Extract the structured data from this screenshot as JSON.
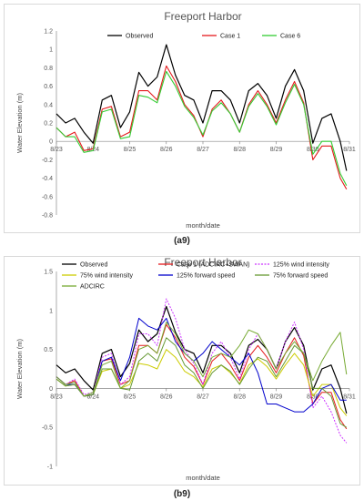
{
  "captions": [
    "(a9)",
    "(b9)"
  ],
  "chart_data": [
    {
      "type": "line",
      "title": "Freeport Harbor",
      "xlabel": "month/date",
      "ylabel": "Water Elevation (m)",
      "ylim": [
        -0.8,
        1.2
      ],
      "yticks": [
        -0.8,
        -0.6,
        -0.4,
        -0.2,
        0,
        0.2,
        0.4,
        0.6,
        0.8,
        1,
        1.2
      ],
      "xlim": [
        0,
        8
      ],
      "x_tick_labels": [
        "8/23",
        "8/24",
        "8/25",
        "8/26",
        "8/27",
        "8/28",
        "8/29",
        "8/30",
        "8/31"
      ],
      "grid": false,
      "legend_position": "top-right",
      "series": [
        {
          "name": "Observed",
          "color": "#000000",
          "width": 1.2,
          "x": [
            0.0,
            0.25,
            0.5,
            0.75,
            1.0,
            1.25,
            1.5,
            1.75,
            2.0,
            2.25,
            2.5,
            2.75,
            3.0,
            3.25,
            3.5,
            3.75,
            4.0,
            4.25,
            4.5,
            4.75,
            5.0,
            5.25,
            5.5,
            5.75,
            6.0,
            6.25,
            6.5,
            6.75,
            7.0,
            7.25,
            7.5,
            7.75,
            7.92
          ],
          "y": [
            0.3,
            0.2,
            0.25,
            0.1,
            -0.02,
            0.45,
            0.5,
            0.15,
            0.32,
            0.75,
            0.6,
            0.7,
            1.05,
            0.72,
            0.5,
            0.45,
            0.2,
            0.55,
            0.55,
            0.45,
            0.2,
            0.55,
            0.63,
            0.5,
            0.25,
            0.6,
            0.78,
            0.55,
            -0.02,
            0.25,
            0.3,
            0.0,
            -0.32
          ]
        },
        {
          "name": "Case 1",
          "color": "#e41a1c",
          "width": 1.1,
          "x": [
            0.0,
            0.25,
            0.5,
            0.75,
            1.0,
            1.25,
            1.5,
            1.75,
            2.0,
            2.25,
            2.5,
            2.75,
            3.0,
            3.25,
            3.5,
            3.75,
            4.0,
            4.25,
            4.5,
            4.75,
            5.0,
            5.25,
            5.5,
            5.75,
            6.0,
            6.25,
            6.5,
            6.75,
            7.0,
            7.25,
            7.5,
            7.75,
            7.92
          ],
          "y": [
            0.15,
            0.05,
            0.1,
            -0.1,
            -0.08,
            0.35,
            0.38,
            0.05,
            0.1,
            0.55,
            0.55,
            0.45,
            0.82,
            0.65,
            0.4,
            0.28,
            0.05,
            0.35,
            0.45,
            0.3,
            0.1,
            0.4,
            0.55,
            0.4,
            0.2,
            0.45,
            0.65,
            0.42,
            -0.2,
            -0.05,
            -0.05,
            -0.4,
            -0.52
          ]
        },
        {
          "name": "Case 6",
          "color": "#33cc33",
          "width": 1.1,
          "x": [
            0.0,
            0.25,
            0.5,
            0.75,
            1.0,
            1.25,
            1.5,
            1.75,
            2.0,
            2.25,
            2.5,
            2.75,
            3.0,
            3.25,
            3.5,
            3.75,
            4.0,
            4.25,
            4.5,
            4.75,
            5.0,
            5.25,
            5.5,
            5.75,
            6.0,
            6.25,
            6.5,
            6.75,
            7.0,
            7.25,
            7.5,
            7.75,
            7.92
          ],
          "y": [
            0.15,
            0.05,
            0.05,
            -0.12,
            -0.1,
            0.32,
            0.35,
            0.03,
            0.05,
            0.5,
            0.48,
            0.42,
            0.76,
            0.6,
            0.38,
            0.26,
            0.07,
            0.33,
            0.42,
            0.3,
            0.1,
            0.38,
            0.52,
            0.38,
            0.18,
            0.42,
            0.62,
            0.4,
            -0.14,
            0.0,
            0.0,
            -0.35,
            -0.48
          ]
        }
      ]
    },
    {
      "type": "line",
      "title": "Freeport Harbor",
      "xlabel": "month/date",
      "ylabel": "Water Elevation (m)",
      "ylim": [
        -1,
        1.5
      ],
      "yticks": [
        -1,
        -0.5,
        0,
        0.5,
        1,
        1.5
      ],
      "xlim": [
        0,
        8
      ],
      "x_tick_labels": [
        "8/23",
        "8/24",
        "8/25",
        "8/26",
        "8/27",
        "8/28",
        "8/29",
        "8/30",
        "8/31"
      ],
      "grid": false,
      "legend_position": "top",
      "series": [
        {
          "name": "Observed",
          "color": "#000000",
          "width": 1.2,
          "x": [
            0.0,
            0.25,
            0.5,
            0.75,
            1.0,
            1.25,
            1.5,
            1.75,
            2.0,
            2.25,
            2.5,
            2.75,
            3.0,
            3.25,
            3.5,
            3.75,
            4.0,
            4.25,
            4.5,
            4.75,
            5.0,
            5.25,
            5.5,
            5.75,
            6.0,
            6.25,
            6.5,
            6.75,
            7.0,
            7.25,
            7.5,
            7.75,
            7.92
          ],
          "y": [
            0.3,
            0.2,
            0.25,
            0.1,
            -0.02,
            0.45,
            0.5,
            0.15,
            0.32,
            0.75,
            0.6,
            0.7,
            1.05,
            0.72,
            0.5,
            0.45,
            0.2,
            0.55,
            0.55,
            0.45,
            0.2,
            0.55,
            0.63,
            0.5,
            0.25,
            0.6,
            0.78,
            0.55,
            -0.02,
            0.25,
            0.3,
            0.0,
            -0.32
          ]
        },
        {
          "name": "Case 1 (ADCIRC+SWAN)",
          "color": "#e41a1c",
          "width": 1.0,
          "x": [
            0.0,
            0.25,
            0.5,
            0.75,
            1.0,
            1.25,
            1.5,
            1.75,
            2.0,
            2.25,
            2.5,
            2.75,
            3.0,
            3.25,
            3.5,
            3.75,
            4.0,
            4.25,
            4.5,
            4.75,
            5.0,
            5.25,
            5.5,
            5.75,
            6.0,
            6.25,
            6.5,
            6.75,
            7.0,
            7.25,
            7.5,
            7.75,
            7.92
          ],
          "y": [
            0.15,
            0.05,
            0.1,
            -0.1,
            -0.08,
            0.35,
            0.38,
            0.05,
            0.1,
            0.55,
            0.55,
            0.45,
            0.82,
            0.65,
            0.4,
            0.28,
            0.05,
            0.35,
            0.45,
            0.3,
            0.1,
            0.4,
            0.55,
            0.4,
            0.2,
            0.45,
            0.65,
            0.42,
            -0.2,
            -0.05,
            -0.05,
            -0.4,
            -0.52
          ]
        },
        {
          "name": "125% wind intensity",
          "color": "#cc33ff",
          "width": 1.0,
          "dash": "2,1.5",
          "x": [
            0.0,
            0.25,
            0.5,
            0.75,
            1.0,
            1.25,
            1.5,
            1.75,
            2.0,
            2.25,
            2.5,
            2.75,
            3.0,
            3.25,
            3.5,
            3.75,
            4.0,
            4.25,
            4.5,
            4.75,
            5.0,
            5.25,
            5.5,
            5.75,
            6.0,
            6.25,
            6.5,
            6.75,
            7.0,
            7.25,
            7.5,
            7.75,
            7.92
          ],
          "y": [
            0.15,
            0.05,
            0.12,
            -0.08,
            -0.05,
            0.4,
            0.45,
            0.05,
            0.15,
            0.7,
            0.7,
            0.55,
            1.15,
            0.9,
            0.5,
            0.32,
            0.05,
            0.45,
            0.6,
            0.4,
            0.12,
            0.5,
            0.7,
            0.5,
            0.25,
            0.6,
            0.85,
            0.5,
            -0.25,
            -0.1,
            -0.3,
            -0.6,
            -0.7
          ]
        },
        {
          "name": "75% wind intensity",
          "color": "#cccc00",
          "width": 1.0,
          "x": [
            0.0,
            0.25,
            0.5,
            0.75,
            1.0,
            1.25,
            1.5,
            1.75,
            2.0,
            2.25,
            2.5,
            2.75,
            3.0,
            3.25,
            3.5,
            3.75,
            4.0,
            4.25,
            4.5,
            4.75,
            5.0,
            5.25,
            5.5,
            5.75,
            6.0,
            6.25,
            6.5,
            6.75,
            7.0,
            7.25,
            7.5,
            7.75,
            7.92
          ],
          "y": [
            0.12,
            0.03,
            0.05,
            -0.1,
            -0.08,
            0.22,
            0.25,
            0.0,
            0.05,
            0.32,
            0.3,
            0.25,
            0.5,
            0.4,
            0.22,
            0.15,
            0.02,
            0.25,
            0.3,
            0.2,
            0.06,
            0.3,
            0.38,
            0.28,
            0.12,
            0.3,
            0.45,
            0.3,
            -0.1,
            0.05,
            0.05,
            -0.25,
            -0.35
          ]
        },
        {
          "name": "125% forward speed",
          "color": "#0000cc",
          "width": 1.0,
          "x": [
            0.0,
            0.25,
            0.5,
            0.75,
            1.0,
            1.25,
            1.5,
            1.75,
            2.0,
            2.25,
            2.5,
            2.75,
            3.0,
            3.25,
            3.5,
            3.75,
            4.0,
            4.25,
            4.5,
            4.75,
            5.0,
            5.25,
            5.5,
            5.75,
            6.0,
            6.25,
            6.5,
            6.75,
            7.0,
            7.25,
            7.5,
            7.75,
            7.92
          ],
          "y": [
            0.15,
            0.05,
            0.05,
            -0.1,
            -0.08,
            0.35,
            0.4,
            0.1,
            0.4,
            0.9,
            0.8,
            0.75,
            0.9,
            0.6,
            0.45,
            0.35,
            0.45,
            0.6,
            0.5,
            0.4,
            0.3,
            0.45,
            0.2,
            -0.2,
            -0.2,
            -0.25,
            -0.3,
            -0.3,
            -0.2,
            0.0,
            0.05,
            -0.15,
            -0.15
          ]
        },
        {
          "name": "75% forward speed",
          "color": "#669933",
          "width": 1.0,
          "x": [
            0.0,
            0.25,
            0.5,
            0.75,
            1.0,
            1.25,
            1.5,
            1.75,
            2.0,
            2.25,
            2.5,
            2.75,
            3.0,
            3.25,
            3.5,
            3.75,
            4.0,
            4.25,
            4.5,
            4.75,
            5.0,
            5.25,
            5.5,
            5.75,
            6.0,
            6.25,
            6.5,
            6.75,
            7.0,
            7.25,
            7.5,
            7.75,
            7.92
          ],
          "y": [
            0.12,
            0.03,
            0.05,
            -0.1,
            -0.08,
            0.25,
            0.25,
            0.0,
            -0.02,
            0.35,
            0.45,
            0.35,
            0.65,
            0.55,
            0.3,
            0.2,
            0.0,
            0.2,
            0.3,
            0.22,
            0.05,
            0.25,
            0.4,
            0.35,
            0.15,
            0.35,
            0.55,
            0.45,
            0.0,
            0.0,
            -0.1,
            -0.45,
            -0.5
          ]
        },
        {
          "name": "ADCIRC",
          "color": "#77aa33",
          "width": 1.0,
          "x": [
            0.0,
            0.25,
            0.5,
            0.75,
            1.0,
            1.25,
            1.5,
            1.75,
            2.0,
            2.25,
            2.5,
            2.75,
            3.0,
            3.25,
            3.5,
            3.75,
            4.0,
            4.25,
            4.5,
            4.75,
            5.0,
            5.25,
            5.5,
            5.75,
            6.0,
            6.25,
            6.5,
            6.75,
            7.0,
            7.25,
            7.5,
            7.75,
            7.92
          ],
          "y": [
            0.15,
            0.05,
            0.08,
            -0.1,
            -0.05,
            0.3,
            0.35,
            0.0,
            0.1,
            0.5,
            0.55,
            0.45,
            0.85,
            0.7,
            0.45,
            0.35,
            0.15,
            0.4,
            0.45,
            0.4,
            0.55,
            0.75,
            0.7,
            0.5,
            0.25,
            0.45,
            0.6,
            0.45,
            0.1,
            0.35,
            0.55,
            0.72,
            0.18
          ]
        }
      ]
    }
  ]
}
